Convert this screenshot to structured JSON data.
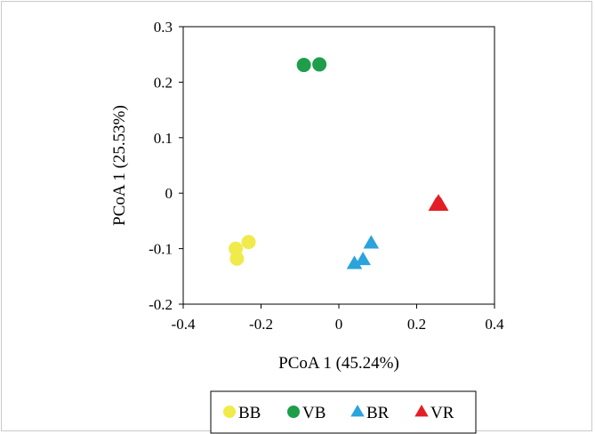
{
  "chart_data": {
    "type": "scatter",
    "xlabel": "PCoA 1 (45.24%)",
    "ylabel": "PCoA 1 (25.53%)",
    "xlim": [
      -0.4,
      0.4
    ],
    "ylim": [
      -0.2,
      0.3
    ],
    "xticks": [
      "-0.4",
      "-0.2",
      "0",
      "0.2",
      "0.4"
    ],
    "yticks": [
      "-0.2",
      "-0.1",
      "0",
      "0.1",
      "0.2",
      "0.3"
    ],
    "grid": false,
    "legend_position": "bottom",
    "series": [
      {
        "name": "BB",
        "marker": "circle",
        "color": "#f0eb4a",
        "points": [
          [
            -0.265,
            -0.1
          ],
          [
            -0.262,
            -0.118
          ],
          [
            -0.232,
            -0.088
          ]
        ]
      },
      {
        "name": "VB",
        "marker": "circle",
        "color": "#1e9e4a",
        "points": [
          [
            -0.09,
            0.231
          ],
          [
            -0.05,
            0.232
          ]
        ]
      },
      {
        "name": "BR",
        "marker": "triangle",
        "color": "#2ba3dc",
        "points": [
          [
            0.04,
            -0.127
          ],
          [
            0.062,
            -0.12
          ],
          [
            0.083,
            -0.09
          ]
        ]
      },
      {
        "name": "VR",
        "marker": "triangle",
        "color": "#e41e26",
        "points": [
          [
            0.25,
            -0.022
          ],
          [
            0.262,
            -0.022
          ],
          [
            0.256,
            -0.016
          ]
        ]
      }
    ]
  }
}
